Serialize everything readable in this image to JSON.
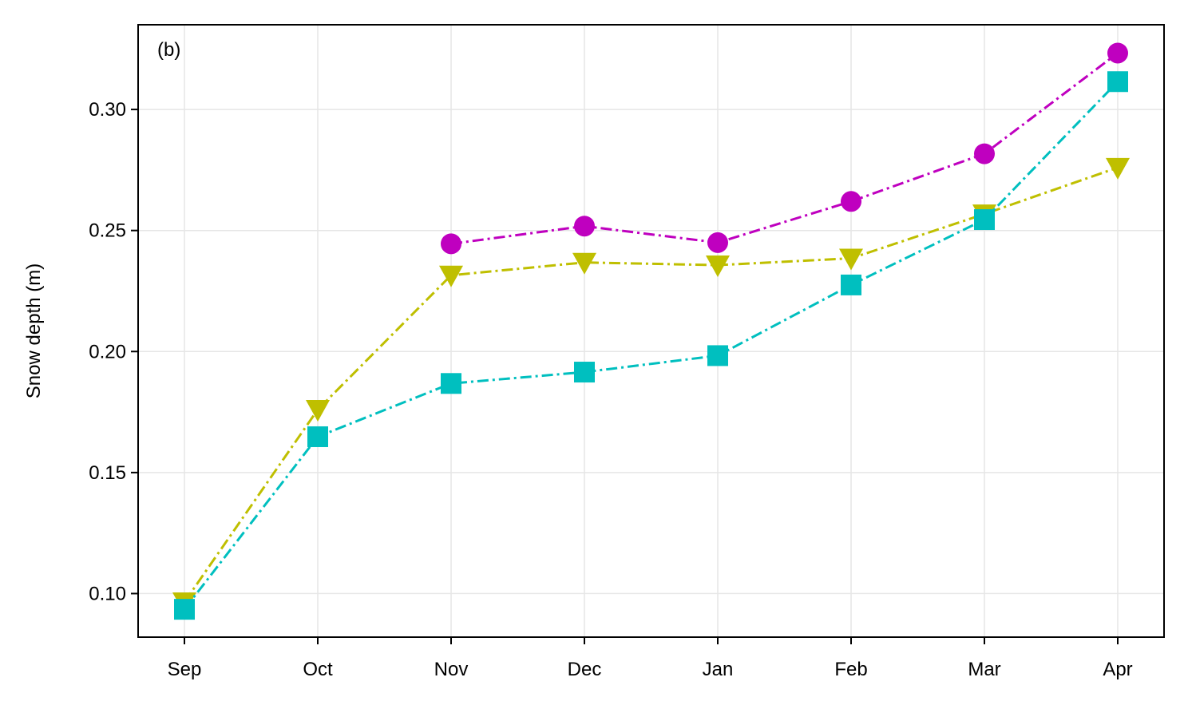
{
  "chart_data": {
    "type": "line",
    "panel_label": "(b)",
    "ylabel": "Snow depth (m)",
    "categories": [
      "Sep",
      "Oct",
      "Nov",
      "Dec",
      "Jan",
      "Feb",
      "Mar",
      "Apr"
    ],
    "ylim": [
      0.082,
      0.335
    ],
    "yticks": [
      0.1,
      0.15,
      0.2,
      0.25,
      0.3
    ],
    "ytick_labels": [
      "0.10",
      "0.15",
      "0.20",
      "0.25",
      "0.30"
    ],
    "grid": true,
    "series": [
      {
        "marker": "circle",
        "color": "#bf00bf",
        "values": [
          null,
          null,
          0.2445,
          0.2518,
          0.245,
          0.262,
          0.2817,
          0.3233
        ]
      },
      {
        "marker": "triangle-down",
        "color": "#bfbf00",
        "values": [
          0.0965,
          0.176,
          0.2315,
          0.2368,
          0.2357,
          0.2385,
          0.2568,
          0.276
        ]
      },
      {
        "marker": "square",
        "color": "#00bfbf",
        "values": [
          0.0935,
          0.1648,
          0.1868,
          0.1915,
          0.1983,
          0.2275,
          0.2545,
          0.3115
        ]
      }
    ]
  }
}
